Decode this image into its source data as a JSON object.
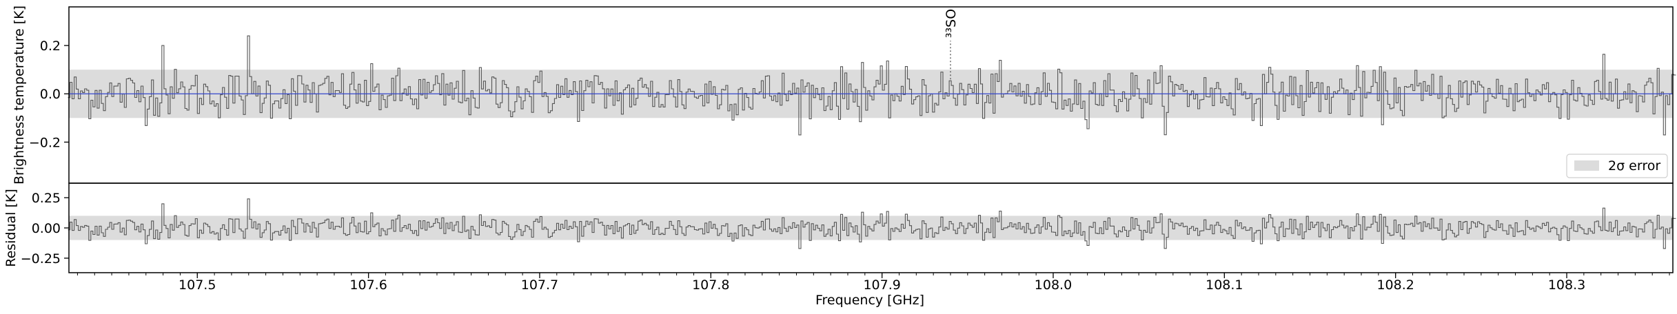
{
  "chart_data": [
    {
      "type": "line",
      "panel": "top",
      "title": "",
      "xlabel": "",
      "ylabel": "Brightness temperature [K]",
      "xlim": [
        107.425,
        108.362
      ],
      "ylim": [
        -0.37,
        0.36
      ],
      "yticks": [
        -0.2,
        0.0,
        0.2
      ],
      "ytick_labels": [
        "−0.2",
        "0.0",
        "0.2"
      ],
      "error_band": [
        -0.1,
        0.1
      ],
      "series": [
        {
          "kind": "observed-spectrum",
          "style": "step",
          "color": "#555555"
        },
        {
          "kind": "model-fit",
          "style": "line",
          "color": "#3344cc"
        }
      ],
      "line_markers": [
        {
          "label": "³³SO",
          "x": 107.94,
          "y_start": 0.06,
          "y_end": 0.22
        }
      ],
      "legend": {
        "position": "bottom-right",
        "entries": [
          {
            "label": "2σ error",
            "color": "#dddddd"
          }
        ]
      }
    },
    {
      "type": "line",
      "panel": "bottom",
      "title": "",
      "xlabel": "Frequency [GHz]",
      "ylabel": "Residual [K]",
      "xlim": [
        107.425,
        108.362
      ],
      "ylim": [
        -0.37,
        0.37
      ],
      "yticks": [
        -0.25,
        0.0,
        0.25
      ],
      "ytick_labels": [
        "−0.25",
        "0.00",
        "0.25"
      ],
      "xticks": [
        107.5,
        107.6,
        107.7,
        107.8,
        107.9,
        108.0,
        108.1,
        108.2,
        108.3
      ],
      "xtick_labels": [
        "107.5",
        "107.6",
        "107.7",
        "107.8",
        "107.9",
        "108.0",
        "108.1",
        "108.2",
        "108.3"
      ],
      "error_band": [
        -0.1,
        0.1
      ],
      "series": [
        {
          "kind": "residual",
          "style": "step",
          "color": "#555555"
        }
      ]
    }
  ],
  "spectrum": {
    "x_start": 107.425,
    "x_step": 0.00122,
    "points": 770,
    "noise_sigma": 0.05,
    "spikes": [
      {
        "x": 107.4795,
        "y": 0.2
      },
      {
        "x": 107.5302,
        "y": 0.24
      },
      {
        "x": 107.889,
        "y": 0.13
      },
      {
        "x": 108.3565,
        "y": -0.17
      }
    ]
  }
}
